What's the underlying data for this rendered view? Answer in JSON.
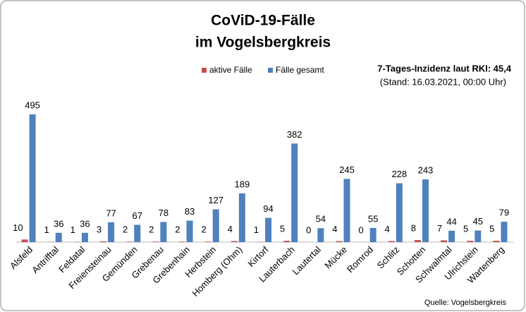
{
  "chart_data": {
    "type": "bar",
    "title": [
      "CoViD-19-Fälle",
      "im Vogelsbergkreis"
    ],
    "annotations": [
      "7-Tages-Inzidenz laut RKI: 45,4",
      "(Stand: 16.03.2021, 00:00 Uhr)"
    ],
    "source": "Quelle: Vogelsbergkreis",
    "categories": [
      "Alsfeld",
      "Antrifftal",
      "Feldatal",
      "Freiensteinau",
      "Gemünden",
      "Grebenau",
      "Grebenhain",
      "Herbstein",
      "Homberg (Ohm)",
      "Kirtorf",
      "Lauterbach",
      "Lautertal",
      "Mücke",
      "Romrod",
      "Schlitz",
      "Schotten",
      "Schwalmtal",
      "Ulrichstein",
      "Wartenberg"
    ],
    "series": [
      {
        "name": "aktive Fälle",
        "color": "#c0504d",
        "values": [
          10,
          1,
          1,
          3,
          2,
          2,
          2,
          2,
          4,
          1,
          5,
          0,
          4,
          0,
          4,
          8,
          7,
          5,
          5
        ]
      },
      {
        "name": "Fälle gesamt",
        "color": "#4f81bd",
        "values": [
          495,
          36,
          36,
          77,
          67,
          78,
          83,
          127,
          189,
          94,
          382,
          54,
          245,
          55,
          228,
          243,
          44,
          45,
          79
        ]
      }
    ]
  }
}
